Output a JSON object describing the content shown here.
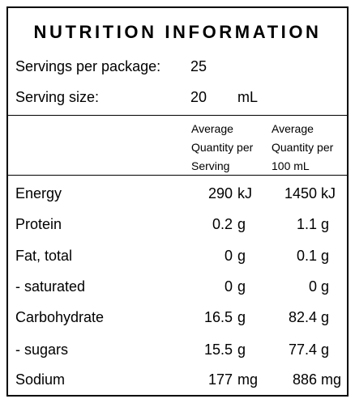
{
  "panel": {
    "title": "NUTRITION INFORMATION",
    "servings_label": "Servings per package:",
    "servings_value": "25",
    "serving_size_label": "Serving size:",
    "serving_size_value": "20",
    "serving_size_unit": "mL"
  },
  "columns": {
    "per_serving": [
      "Average",
      "Quantity per",
      "Serving"
    ],
    "per_100": [
      "Average",
      "Quantity per",
      "100 mL"
    ]
  },
  "rows": [
    {
      "name": "Energy",
      "serving": "290",
      "serving_unit": "kJ",
      "per100": "1450",
      "per100_unit": "kJ"
    },
    {
      "name": "Protein",
      "serving": "0.2",
      "serving_unit": "g",
      "per100": "1.1",
      "per100_unit": "g"
    },
    {
      "name": "Fat, total",
      "serving": "0",
      "serving_unit": "g",
      "per100": "0.1",
      "per100_unit": "g"
    },
    {
      "name": "- saturated",
      "serving": "0",
      "serving_unit": "g",
      "per100": "0",
      "per100_unit": "g"
    },
    {
      "name": "Carbohydrate",
      "serving": "16.5",
      "serving_unit": "g",
      "per100": "82.4",
      "per100_unit": "g"
    },
    {
      "name": "- sugars",
      "serving": "15.5",
      "serving_unit": "g",
      "per100": "77.4",
      "per100_unit": "g"
    },
    {
      "name": "Sodium",
      "serving": "177",
      "serving_unit": "mg",
      "per100": "886",
      "per100_unit": "mg"
    }
  ]
}
